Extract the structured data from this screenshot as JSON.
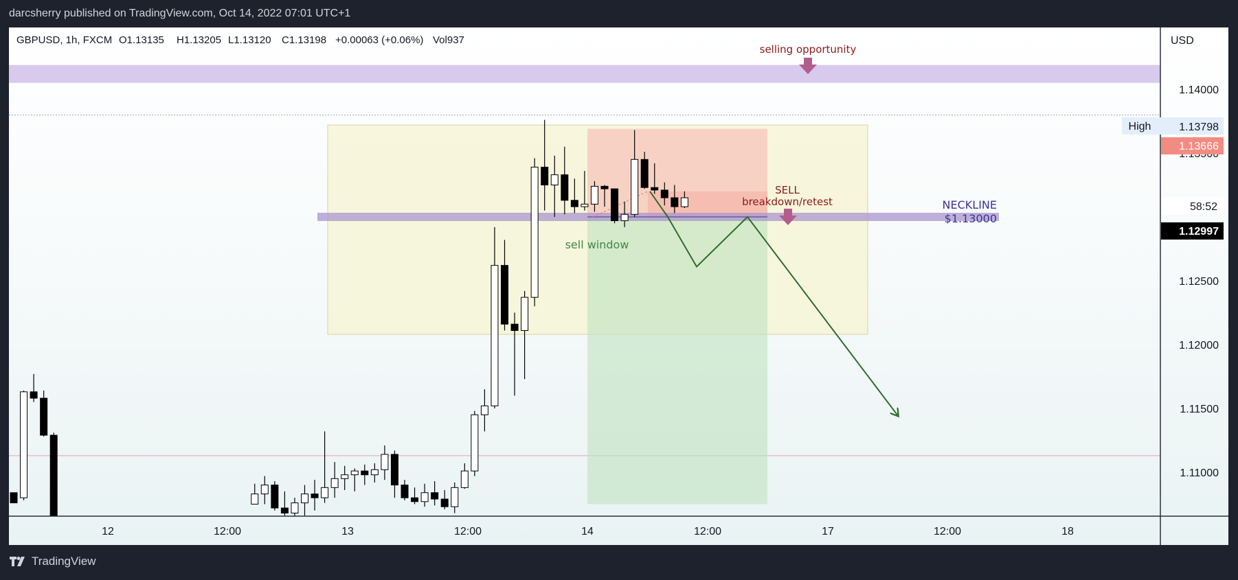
{
  "header": {
    "publisher": "darcsherry published on TradingView.com, Oct 14, 2022 07:01 UTC+1"
  },
  "footer": {
    "brand": "TradingView"
  },
  "legend": {
    "symbol": "GBPUSD, 1h, FXCM",
    "open": "O1.13135",
    "high": "H1.13205",
    "low": "L1.13120",
    "close": "C1.13198",
    "change": "+0.00063 (+0.06%)",
    "volume": "Vol937"
  },
  "price_axis": {
    "currency": "USD",
    "ticks": [
      "1.14000",
      "1.13500",
      "1.12500",
      "1.12000",
      "1.11500",
      "1.11000"
    ],
    "high_label": "High",
    "high_value": "1.13798",
    "mark_value": "1.13666",
    "countdown": "58:52",
    "last_price": "1.12997"
  },
  "time_axis": {
    "ticks": [
      "12",
      "12:00",
      "13",
      "12:00",
      "14",
      "12:00",
      "17",
      "12:00",
      "18"
    ]
  },
  "annotations": {
    "selling_opportunity": "selling opportunity",
    "sell": "SELL",
    "breakdown": "breakdown/retest",
    "neckline": "NECKLINE",
    "neckline_price": "$1.13000",
    "sell_window": "sell window"
  },
  "colors": {
    "bull_body": "#ffffff",
    "bear_body": "#000000",
    "zone_band": "#c9b8e6",
    "neckline_band": "#a996cf",
    "pattern_box": "#f6f4d2",
    "stop_zone": "#f7b5ae",
    "target_zone": "#bfe3bf",
    "projection_line": "#2e6b2e",
    "marker_arrow": "#b35d8c",
    "annotation_red": "#8b1a1a",
    "neckline_text": "#3b3494",
    "mark_badge": "#f28b82",
    "last_price_badge": "#000000"
  },
  "chart_data": {
    "type": "candlestick",
    "symbol": "GBPUSD",
    "timeframe": "1h",
    "ylim": [
      1.1075,
      1.1455
    ],
    "resistance_zone": [
      1.1405,
      1.1419
    ],
    "neckline": 1.13,
    "pattern_box": [
      1.1208,
      1.1372
    ],
    "short_position": {
      "entry": 1.132,
      "stop": 1.1369,
      "target": 1.1075
    },
    "projection": [
      [
        1.132,
        1.13
      ],
      [
        1.1261
      ],
      [
        1.13
      ],
      [
        1.1145
      ]
    ],
    "candles_ohlc": [
      [
        1.1084,
        1.1084,
        1.1076,
        1.1076
      ],
      [
        1.108,
        1.1164,
        1.1078,
        1.1163
      ],
      [
        1.1163,
        1.1177,
        1.1155,
        1.1158
      ],
      [
        1.1158,
        1.1164,
        1.1128,
        1.1129
      ],
      [
        1.1129,
        1.1131,
        1.106,
        1.1062
      ],
      [
        1.1075,
        1.1091,
        1.1075,
        1.1083
      ],
      [
        1.1083,
        1.1097,
        1.1075,
        1.109
      ],
      [
        1.109,
        1.1093,
        1.107,
        1.1072
      ],
      [
        1.1072,
        1.1085,
        1.1066,
        1.1068
      ],
      [
        1.1068,
        1.108,
        1.1063,
        1.1076
      ],
      [
        1.1076,
        1.109,
        1.1066,
        1.1083
      ],
      [
        1.1083,
        1.1094,
        1.107,
        1.108
      ],
      [
        1.108,
        1.1132,
        1.1076,
        1.1088
      ],
      [
        1.1088,
        1.1108,
        1.108,
        1.1095
      ],
      [
        1.1095,
        1.1105,
        1.1086,
        1.1098
      ],
      [
        1.1098,
        1.1103,
        1.1085,
        1.1101
      ],
      [
        1.1101,
        1.1106,
        1.109,
        1.1098
      ],
      [
        1.1098,
        1.1107,
        1.1092,
        1.1102
      ],
      [
        1.1102,
        1.1121,
        1.1094,
        1.1114
      ],
      [
        1.1114,
        1.1117,
        1.108,
        1.109
      ],
      [
        1.109,
        1.1094,
        1.1078,
        1.108
      ],
      [
        1.108,
        1.1088,
        1.1075,
        1.1077
      ],
      [
        1.1077,
        1.1091,
        1.1073,
        1.1084
      ],
      [
        1.1084,
        1.1093,
        1.1074,
        1.1079
      ],
      [
        1.1079,
        1.1086,
        1.1071,
        1.1073
      ],
      [
        1.1073,
        1.1092,
        1.1068,
        1.1088
      ],
      [
        1.1088,
        1.1107,
        1.1087,
        1.1101
      ],
      [
        1.1101,
        1.1148,
        1.1097,
        1.1145
      ],
      [
        1.1145,
        1.1165,
        1.1132,
        1.1152
      ],
      [
        1.1152,
        1.1292,
        1.115,
        1.1262
      ],
      [
        1.1262,
        1.1282,
        1.1211,
        1.1216
      ],
      [
        1.1216,
        1.1225,
        1.116,
        1.1211
      ],
      [
        1.1211,
        1.1242,
        1.1173,
        1.1237
      ],
      [
        1.1237,
        1.1346,
        1.123,
        1.1339
      ],
      [
        1.1339,
        1.1376,
        1.1305,
        1.1325
      ],
      [
        1.1325,
        1.1348,
        1.13,
        1.1333
      ],
      [
        1.1333,
        1.1355,
        1.1302,
        1.1313
      ],
      [
        1.1313,
        1.133,
        1.1303,
        1.1308
      ],
      [
        1.1308,
        1.1336,
        1.1305,
        1.131
      ],
      [
        1.131,
        1.1328,
        1.1304,
        1.1324
      ],
      [
        1.1324,
        1.1325,
        1.1308,
        1.1322
      ],
      [
        1.1322,
        1.1322,
        1.1295,
        1.1297
      ],
      [
        1.1297,
        1.1312,
        1.1292,
        1.1302
      ],
      [
        1.1302,
        1.1368,
        1.13,
        1.1345
      ],
      [
        1.1345,
        1.1351,
        1.1322,
        1.1323
      ],
      [
        1.1323,
        1.1342,
        1.1318,
        1.1321
      ],
      [
        1.1321,
        1.1327,
        1.1309,
        1.1315
      ],
      [
        1.1315,
        1.1325,
        1.1303,
        1.1308
      ],
      [
        1.1308,
        1.132,
        1.1307,
        1.1315
      ]
    ]
  }
}
